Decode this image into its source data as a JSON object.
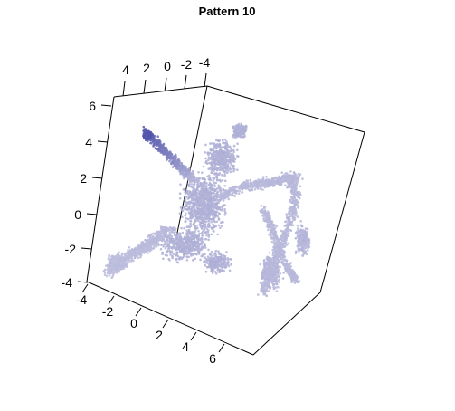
{
  "chart_data": {
    "type": "scatter",
    "projection": "3d",
    "title": "Pattern 10",
    "axes": {
      "x": {
        "range": [
          -4,
          7
        ],
        "ticks": [
          -4,
          -2,
          0,
          2,
          4,
          6
        ],
        "tick_labels": [
          "-4",
          "-2",
          "0",
          "2",
          "4",
          "6"
        ]
      },
      "y": {
        "range": [
          -4,
          5
        ],
        "ticks": [
          4,
          2,
          0,
          -2,
          -4
        ],
        "tick_labels": [
          "4",
          "2",
          "0",
          "-2",
          "-4"
        ]
      },
      "z": {
        "range": [
          -4,
          7
        ],
        "ticks": [
          6,
          4,
          2,
          0,
          -2,
          -4
        ],
        "tick_labels": [
          "6",
          "4",
          "2",
          "0",
          "-2",
          "-4"
        ]
      }
    },
    "colors": {
      "main": "#c8c8e2",
      "dark": "#4d50a8",
      "box": "#000000"
    },
    "structures": [
      {
        "name": "central-mass",
        "shade": 0.15
      },
      {
        "name": "upper-arm",
        "shade": 0.9
      },
      {
        "name": "left-arm",
        "shade": 0.05
      },
      {
        "name": "right-loop",
        "shade": 0.1
      },
      {
        "name": "right-lobe",
        "shade": 0.1
      }
    ]
  }
}
